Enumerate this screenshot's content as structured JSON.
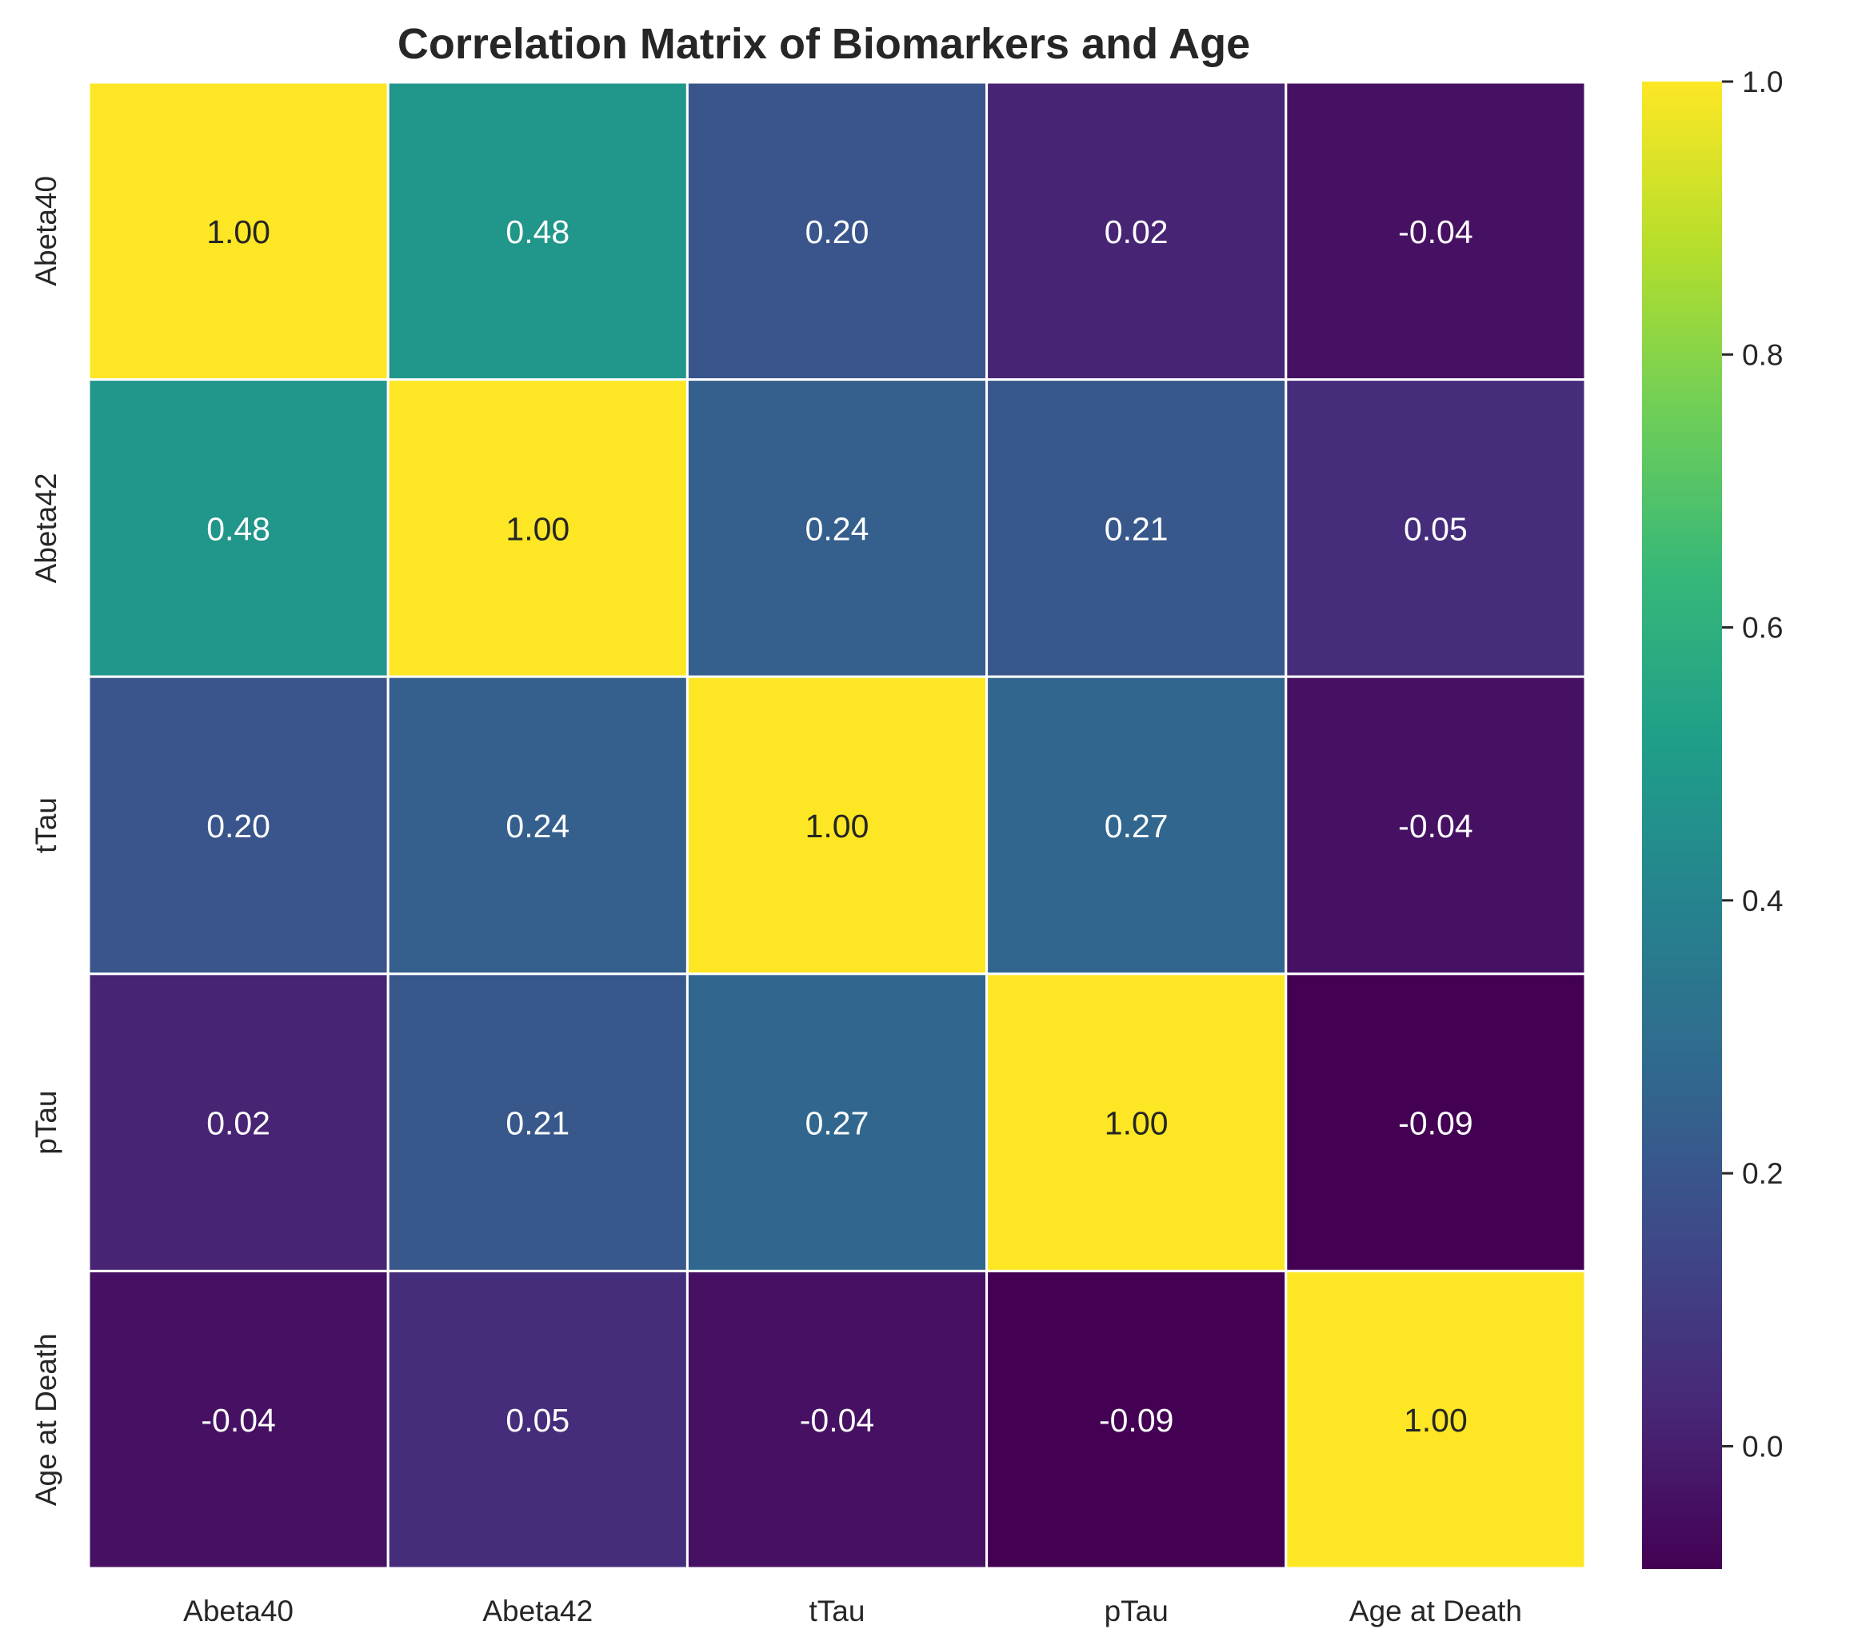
{
  "chart_data": {
    "type": "heatmap",
    "title": "Correlation Matrix of Biomarkers and Age",
    "x_categories": [
      "Abeta40",
      "Abeta42",
      "tTau",
      "pTau",
      "Age at Death"
    ],
    "y_categories": [
      "Abeta40",
      "Abeta42",
      "tTau",
      "pTau",
      "Age at Death"
    ],
    "values": [
      [
        1.0,
        0.48,
        0.2,
        0.02,
        -0.04
      ],
      [
        0.48,
        1.0,
        0.24,
        0.21,
        0.05
      ],
      [
        0.2,
        0.24,
        1.0,
        0.27,
        -0.04
      ],
      [
        0.02,
        0.21,
        0.27,
        1.0,
        -0.09
      ],
      [
        -0.04,
        0.05,
        -0.04,
        -0.09,
        1.0
      ]
    ],
    "cell_labels": [
      [
        "1.00",
        "0.48",
        "0.20",
        "0.02",
        "-0.04"
      ],
      [
        "0.48",
        "1.00",
        "0.24",
        "0.21",
        "0.05"
      ],
      [
        "0.20",
        "0.24",
        "1.00",
        "0.27",
        "-0.04"
      ],
      [
        "0.02",
        "0.21",
        "0.27",
        "1.00",
        "-0.09"
      ],
      [
        "-0.04",
        "0.05",
        "-0.04",
        "-0.09",
        "1.00"
      ]
    ],
    "colormap": "viridis",
    "value_range": [
      -0.09,
      1.0
    ],
    "colorbar_ticks": [
      0.0,
      0.2,
      0.4,
      0.6,
      0.8,
      1.0
    ],
    "colorbar_tick_labels": [
      "0.0",
      "0.2",
      "0.4",
      "0.6",
      "0.8",
      "1.0"
    ],
    "colorbar_position": "right",
    "grid": false,
    "cell_border_color": "#ffffff"
  }
}
